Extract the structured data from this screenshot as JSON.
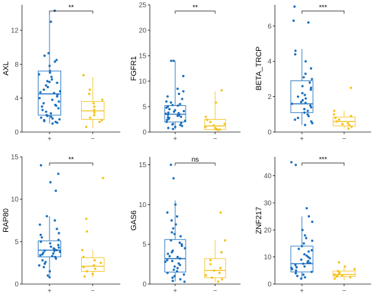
{
  "colors": {
    "plus": "#1a6fbe",
    "minus": "#f5c21b"
  },
  "chart_data": [
    {
      "type": "box",
      "ylabel": "AXL",
      "ylim": [
        0,
        15
      ],
      "yticks": [
        0,
        4,
        8,
        12
      ],
      "categories": [
        "+",
        "−"
      ],
      "significance": "**",
      "box": [
        {
          "min": 1.0,
          "q1": 2.0,
          "median": 4.5,
          "q3": 7.2,
          "max": 14.0
        },
        {
          "min": 0.5,
          "q1": 1.5,
          "median": 2.5,
          "q3": 3.6,
          "max": 6.5
        }
      ],
      "points": [
        [
          14.3,
          13.0,
          9.3,
          9.0,
          8.5,
          8.3,
          7.8,
          7.2,
          7.0,
          6.8,
          6.5,
          6.2,
          6.0,
          5.8,
          5.5,
          5.3,
          5.0,
          4.8,
          4.6,
          4.4,
          4.2,
          4.0,
          3.8,
          3.6,
          3.4,
          3.2,
          3.0,
          2.8,
          2.6,
          2.4,
          2.2,
          2.0,
          1.9,
          1.8,
          1.7,
          1.6,
          1.5,
          1.4,
          1.3,
          1.2,
          1.1,
          1.0,
          4.7,
          5.9,
          3.1
        ],
        [
          6.7,
          5.0,
          4.5,
          3.8,
          3.4,
          3.0,
          2.6,
          2.3,
          2.0,
          1.7,
          1.4,
          1.2,
          0.6
        ]
      ]
    },
    {
      "type": "box",
      "ylabel": "FGFR1",
      "ylim": [
        0,
        25
      ],
      "yticks": [
        0,
        5,
        10,
        15,
        20,
        25
      ],
      "categories": [
        "+",
        "−"
      ],
      "significance": "**",
      "box": [
        {
          "min": 0.5,
          "q1": 2.0,
          "median": 3.5,
          "q3": 5.2,
          "max": 14.0
        },
        {
          "min": 0.3,
          "q1": 0.5,
          "median": 1.2,
          "q3": 2.5,
          "max": 8.0
        }
      ],
      "points": [
        [
          14.0,
          14.0,
          11.0,
          8.5,
          8.0,
          7.5,
          7.0,
          6.5,
          6.0,
          5.8,
          5.5,
          5.2,
          5.0,
          4.8,
          4.5,
          4.3,
          4.0,
          3.8,
          3.6,
          3.4,
          3.2,
          3.0,
          2.8,
          2.6,
          2.4,
          2.2,
          2.0,
          1.8,
          1.6,
          1.4,
          1.2,
          1.0,
          0.8,
          0.6,
          3.3,
          4.1,
          2.9,
          3.7,
          1.5,
          5.3
        ],
        [
          8.2,
          5.8,
          3.0,
          2.4,
          2.0,
          1.6,
          1.3,
          1.0,
          0.8,
          0.6,
          0.5,
          0.4
        ]
      ]
    },
    {
      "type": "box",
      "ylabel": "BETA_TRCP",
      "ylim": [
        0,
        7.2
      ],
      "yticks": [
        0,
        2,
        4,
        6
      ],
      "categories": [
        "+",
        "−"
      ],
      "significance": "***",
      "box": [
        {
          "min": 0.4,
          "q1": 1.1,
          "median": 1.6,
          "q3": 2.9,
          "max": 4.7
        },
        {
          "min": 0.2,
          "q1": 0.35,
          "median": 0.6,
          "q3": 0.85,
          "max": 1.2
        }
      ],
      "points": [
        [
          7.1,
          6.3,
          6.2,
          4.6,
          4.4,
          4.0,
          3.6,
          3.3,
          3.0,
          2.8,
          2.6,
          2.4,
          2.2,
          2.0,
          1.9,
          1.8,
          1.7,
          1.6,
          1.5,
          1.4,
          1.3,
          1.2,
          1.1,
          1.0,
          0.9,
          0.8,
          0.7,
          0.6,
          0.5,
          0.4,
          2.5,
          3.1,
          1.65,
          2.1
        ],
        [
          2.5,
          1.2,
          1.0,
          0.9,
          0.8,
          0.7,
          0.6,
          0.5,
          0.45,
          0.4,
          0.3,
          0.2
        ]
      ]
    },
    {
      "type": "box",
      "ylabel": "RAP80",
      "ylim": [
        0,
        15
      ],
      "yticks": [
        0,
        5,
        10,
        15
      ],
      "categories": [
        "+",
        "−"
      ],
      "significance": "**",
      "box": [
        {
          "min": 1.0,
          "q1": 3.2,
          "median": 4.0,
          "q3": 5.1,
          "max": 8.0
        },
        {
          "min": 0.8,
          "q1": 1.5,
          "median": 2.1,
          "q3": 3.1,
          "max": 4.0
        }
      ],
      "points": [
        [
          14.0,
          13.0,
          12.0,
          11.0,
          8.0,
          7.5,
          7.0,
          6.5,
          6.0,
          5.5,
          5.2,
          5.0,
          4.8,
          4.6,
          4.4,
          4.2,
          4.0,
          3.9,
          3.8,
          3.7,
          3.6,
          3.5,
          3.4,
          3.3,
          3.2,
          3.0,
          2.8,
          2.6,
          2.4,
          2.2,
          2.0,
          1.5,
          1.0,
          0.8,
          4.1,
          3.95,
          4.3,
          5.8
        ],
        [
          12.5,
          7.7,
          6.2,
          4.0,
          3.2,
          2.8,
          2.5,
          2.2,
          2.0,
          1.8,
          1.5,
          1.2,
          0.9
        ]
      ]
    },
    {
      "type": "box",
      "ylabel": "GAS6",
      "ylim": [
        0,
        16
      ],
      "yticks": [
        0,
        5,
        10,
        15
      ],
      "categories": [
        "+",
        "−"
      ],
      "significance": "ns",
      "box": [
        {
          "min": 0.3,
          "q1": 1.5,
          "median": 3.2,
          "q3": 5.6,
          "max": 10.5
        },
        {
          "min": 0.2,
          "q1": 0.8,
          "median": 1.7,
          "q3": 3.2,
          "max": 5.5
        }
      ],
      "points": [
        [
          15.0,
          13.3,
          10.0,
          9.0,
          8.5,
          8.0,
          7.5,
          7.0,
          6.5,
          6.0,
          5.5,
          5.0,
          4.8,
          4.5,
          4.2,
          4.0,
          3.8,
          3.5,
          3.2,
          3.0,
          2.8,
          2.6,
          2.4,
          2.2,
          2.0,
          1.8,
          1.6,
          1.4,
          1.2,
          1.0,
          0.8,
          0.6,
          0.4,
          0.3,
          3.4,
          5.2,
          2.9,
          6.3
        ],
        [
          9.0,
          5.5,
          4.0,
          3.0,
          2.5,
          2.0,
          1.7,
          1.4,
          1.1,
          0.8,
          0.6,
          0.3
        ]
      ]
    },
    {
      "type": "box",
      "ylabel": "ZNF217",
      "ylim": [
        0,
        47
      ],
      "yticks": [
        0,
        10,
        20,
        30,
        40
      ],
      "categories": [
        "+",
        "−"
      ],
      "significance": "***",
      "box": [
        {
          "min": 2.0,
          "q1": 4.5,
          "median": 7.5,
          "q3": 14.0,
          "max": 25.0
        },
        {
          "min": 1.5,
          "q1": 2.8,
          "median": 3.5,
          "q3": 4.8,
          "max": 6.5
        }
      ],
      "points": [
        [
          45.0,
          44.0,
          28.0,
          25.0,
          23.0,
          20.0,
          18.0,
          16.0,
          15.0,
          14.0,
          13.0,
          12.0,
          11.0,
          10.0,
          9.5,
          9.0,
          8.5,
          8.0,
          7.5,
          7.0,
          6.5,
          6.0,
          5.5,
          5.0,
          4.5,
          4.0,
          3.5,
          3.0,
          2.5,
          2.0,
          7.8,
          12.5,
          10.5,
          17.0,
          6.2
        ],
        [
          8.0,
          6.5,
          5.5,
          4.8,
          4.2,
          3.8,
          3.5,
          3.2,
          3.0,
          2.8,
          2.5,
          2.0
        ]
      ]
    }
  ]
}
